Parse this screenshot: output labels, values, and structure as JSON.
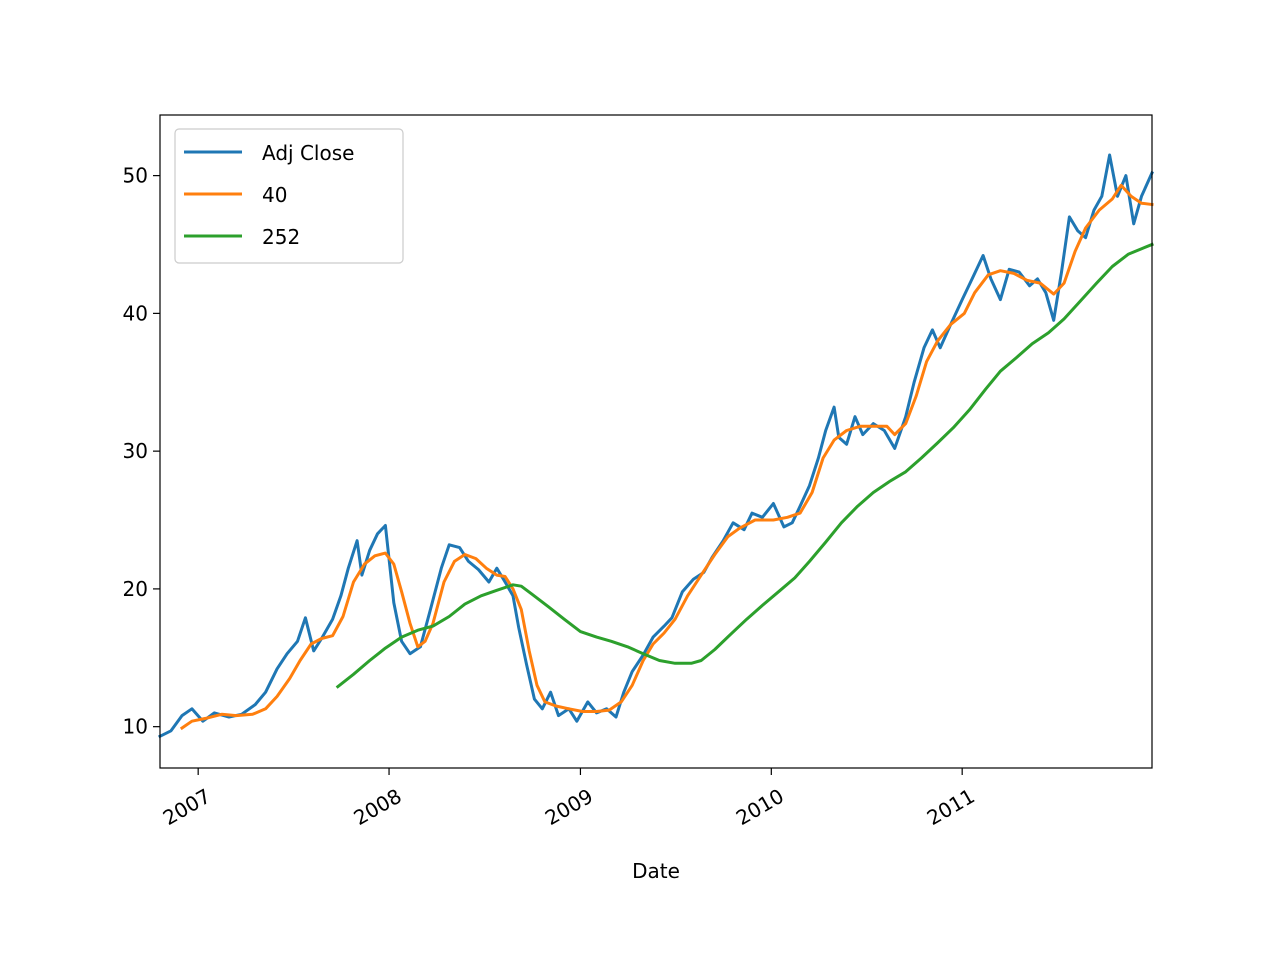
{
  "chart_data": {
    "type": "line",
    "title": "",
    "xlabel": "Date",
    "ylabel": "",
    "xlim": [
      "2006-10-20",
      "2011-12-30"
    ],
    "ylim": [
      7,
      54.4
    ],
    "grid": false,
    "legend_position": "top-left",
    "x_ticks": [
      {
        "date": "2007-01-01",
        "label": "2007"
      },
      {
        "date": "2008-01-01",
        "label": "2008"
      },
      {
        "date": "2009-01-01",
        "label": "2009"
      },
      {
        "date": "2010-01-01",
        "label": "2010"
      },
      {
        "date": "2011-01-01",
        "label": "2011"
      }
    ],
    "y_ticks": [
      10,
      20,
      30,
      40,
      50
    ],
    "series": [
      {
        "name": "Adj Close",
        "color": "#1f77b4",
        "points": [
          [
            "2006-10-20",
            9.3
          ],
          [
            "2006-11-10",
            9.7
          ],
          [
            "2006-12-01",
            10.8
          ],
          [
            "2006-12-20",
            11.3
          ],
          [
            "2007-01-10",
            10.4
          ],
          [
            "2007-02-01",
            11.0
          ],
          [
            "2007-03-01",
            10.7
          ],
          [
            "2007-03-25",
            10.9
          ],
          [
            "2007-04-20",
            11.6
          ],
          [
            "2007-05-10",
            12.5
          ],
          [
            "2007-06-01",
            14.2
          ],
          [
            "2007-06-20",
            15.3
          ],
          [
            "2007-07-10",
            16.2
          ],
          [
            "2007-07-25",
            17.9
          ],
          [
            "2007-08-10",
            15.5
          ],
          [
            "2007-08-25",
            16.4
          ],
          [
            "2007-09-15",
            17.8
          ],
          [
            "2007-10-01",
            19.5
          ],
          [
            "2007-10-15",
            21.5
          ],
          [
            "2007-11-01",
            23.5
          ],
          [
            "2007-11-10",
            21.0
          ],
          [
            "2007-11-25",
            22.8
          ],
          [
            "2007-12-10",
            24.0
          ],
          [
            "2007-12-25",
            24.6
          ],
          [
            "2008-01-10",
            19.0
          ],
          [
            "2008-01-25",
            16.2
          ],
          [
            "2008-02-10",
            15.3
          ],
          [
            "2008-03-01",
            15.8
          ],
          [
            "2008-03-20",
            18.5
          ],
          [
            "2008-04-10",
            21.5
          ],
          [
            "2008-04-25",
            23.2
          ],
          [
            "2008-05-15",
            23.0
          ],
          [
            "2008-06-01",
            22.0
          ],
          [
            "2008-06-20",
            21.4
          ],
          [
            "2008-07-10",
            20.5
          ],
          [
            "2008-07-25",
            21.5
          ],
          [
            "2008-08-10",
            20.5
          ],
          [
            "2008-08-25",
            19.5
          ],
          [
            "2008-09-05",
            17.2
          ],
          [
            "2008-09-20",
            14.5
          ],
          [
            "2008-10-05",
            12.0
          ],
          [
            "2008-10-20",
            11.3
          ],
          [
            "2008-11-05",
            12.5
          ],
          [
            "2008-11-20",
            10.8
          ],
          [
            "2008-12-10",
            11.3
          ],
          [
            "2008-12-25",
            10.4
          ],
          [
            "2009-01-15",
            11.8
          ],
          [
            "2009-02-01",
            11.0
          ],
          [
            "2009-02-20",
            11.3
          ],
          [
            "2009-03-10",
            10.7
          ],
          [
            "2009-03-25",
            12.5
          ],
          [
            "2009-04-10",
            14.0
          ],
          [
            "2009-05-01",
            15.2
          ],
          [
            "2009-05-20",
            16.5
          ],
          [
            "2009-06-10",
            17.3
          ],
          [
            "2009-06-25",
            17.9
          ],
          [
            "2009-07-15",
            19.8
          ],
          [
            "2009-08-05",
            20.7
          ],
          [
            "2009-08-25",
            21.2
          ],
          [
            "2009-09-10",
            22.3
          ],
          [
            "2009-10-01",
            23.5
          ],
          [
            "2009-10-20",
            24.8
          ],
          [
            "2009-11-10",
            24.3
          ],
          [
            "2009-11-25",
            25.5
          ],
          [
            "2009-12-15",
            25.2
          ],
          [
            "2010-01-05",
            26.2
          ],
          [
            "2010-01-25",
            24.5
          ],
          [
            "2010-02-10",
            24.8
          ],
          [
            "2010-02-25",
            26.0
          ],
          [
            "2010-03-15",
            27.5
          ],
          [
            "2010-04-01",
            29.5
          ],
          [
            "2010-04-15",
            31.5
          ],
          [
            "2010-05-01",
            33.2
          ],
          [
            "2010-05-10",
            31.0
          ],
          [
            "2010-05-25",
            30.5
          ],
          [
            "2010-06-10",
            32.5
          ],
          [
            "2010-06-25",
            31.2
          ],
          [
            "2010-07-15",
            32.0
          ],
          [
            "2010-08-05",
            31.5
          ],
          [
            "2010-08-25",
            30.2
          ],
          [
            "2010-09-15",
            32.5
          ],
          [
            "2010-10-01",
            35.0
          ],
          [
            "2010-10-20",
            37.5
          ],
          [
            "2010-11-05",
            38.8
          ],
          [
            "2010-11-20",
            37.5
          ],
          [
            "2010-12-10",
            39.2
          ],
          [
            "2011-01-01",
            41.0
          ],
          [
            "2011-01-20",
            42.5
          ],
          [
            "2011-02-10",
            44.2
          ],
          [
            "2011-02-25",
            42.5
          ],
          [
            "2011-03-15",
            41.0
          ],
          [
            "2011-04-01",
            43.2
          ],
          [
            "2011-04-20",
            43.0
          ],
          [
            "2011-05-10",
            42.0
          ],
          [
            "2011-05-25",
            42.5
          ],
          [
            "2011-06-10",
            41.5
          ],
          [
            "2011-06-25",
            39.5
          ],
          [
            "2011-07-10",
            43.0
          ],
          [
            "2011-07-25",
            47.0
          ],
          [
            "2011-08-10",
            46.0
          ],
          [
            "2011-08-25",
            45.5
          ],
          [
            "2011-09-10",
            47.5
          ],
          [
            "2011-09-25",
            48.5
          ],
          [
            "2011-10-10",
            51.5
          ],
          [
            "2011-10-25",
            48.5
          ],
          [
            "2011-11-10",
            50.0
          ],
          [
            "2011-11-25",
            46.5
          ],
          [
            "2011-12-10",
            48.5
          ],
          [
            "2011-12-30",
            50.2
          ]
        ]
      },
      {
        "name": "40",
        "color": "#ff7f0e",
        "points": [
          [
            "2006-12-01",
            9.9
          ],
          [
            "2006-12-20",
            10.4
          ],
          [
            "2007-01-15",
            10.6
          ],
          [
            "2007-02-15",
            10.9
          ],
          [
            "2007-03-15",
            10.8
          ],
          [
            "2007-04-15",
            10.9
          ],
          [
            "2007-05-10",
            11.3
          ],
          [
            "2007-06-01",
            12.2
          ],
          [
            "2007-06-25",
            13.5
          ],
          [
            "2007-07-15",
            14.8
          ],
          [
            "2007-08-05",
            16.0
          ],
          [
            "2007-08-25",
            16.4
          ],
          [
            "2007-09-15",
            16.6
          ],
          [
            "2007-10-05",
            18.0
          ],
          [
            "2007-10-25",
            20.5
          ],
          [
            "2007-11-15",
            21.8
          ],
          [
            "2007-12-05",
            22.4
          ],
          [
            "2007-12-25",
            22.6
          ],
          [
            "2008-01-10",
            21.8
          ],
          [
            "2008-01-25",
            19.8
          ],
          [
            "2008-02-10",
            17.5
          ],
          [
            "2008-02-25",
            15.8
          ],
          [
            "2008-03-10",
            16.2
          ],
          [
            "2008-03-25",
            17.5
          ],
          [
            "2008-04-15",
            20.5
          ],
          [
            "2008-05-05",
            22.0
          ],
          [
            "2008-05-25",
            22.5
          ],
          [
            "2008-06-15",
            22.2
          ],
          [
            "2008-07-05",
            21.5
          ],
          [
            "2008-07-25",
            21.0
          ],
          [
            "2008-08-10",
            20.9
          ],
          [
            "2008-08-25",
            20.0
          ],
          [
            "2008-09-10",
            18.5
          ],
          [
            "2008-09-25",
            15.5
          ],
          [
            "2008-10-10",
            13.0
          ],
          [
            "2008-10-25",
            11.8
          ],
          [
            "2008-11-15",
            11.5
          ],
          [
            "2008-12-10",
            11.3
          ],
          [
            "2009-01-05",
            11.1
          ],
          [
            "2009-02-01",
            11.1
          ],
          [
            "2009-02-25",
            11.2
          ],
          [
            "2009-03-20",
            11.8
          ],
          [
            "2009-04-10",
            13.0
          ],
          [
            "2009-05-01",
            14.8
          ],
          [
            "2009-05-20",
            16.0
          ],
          [
            "2009-06-10",
            16.8
          ],
          [
            "2009-07-01",
            17.8
          ],
          [
            "2009-07-25",
            19.5
          ],
          [
            "2009-08-20",
            21.0
          ],
          [
            "2009-09-15",
            22.5
          ],
          [
            "2009-10-10",
            23.8
          ],
          [
            "2009-11-01",
            24.4
          ],
          [
            "2009-12-01",
            25.0
          ],
          [
            "2010-01-05",
            25.0
          ],
          [
            "2010-02-01",
            25.2
          ],
          [
            "2010-02-25",
            25.5
          ],
          [
            "2010-03-20",
            27.0
          ],
          [
            "2010-04-10",
            29.5
          ],
          [
            "2010-05-01",
            30.8
          ],
          [
            "2010-05-25",
            31.5
          ],
          [
            "2010-06-20",
            31.8
          ],
          [
            "2010-07-15",
            31.8
          ],
          [
            "2010-08-10",
            31.8
          ],
          [
            "2010-08-25",
            31.2
          ],
          [
            "2010-09-15",
            32.0
          ],
          [
            "2010-10-05",
            34.0
          ],
          [
            "2010-10-25",
            36.5
          ],
          [
            "2010-11-15",
            38.0
          ],
          [
            "2010-12-10",
            39.2
          ],
          [
            "2011-01-05",
            40.0
          ],
          [
            "2011-01-25",
            41.5
          ],
          [
            "2011-02-20",
            42.8
          ],
          [
            "2011-03-15",
            43.1
          ],
          [
            "2011-04-10",
            42.9
          ],
          [
            "2011-05-05",
            42.4
          ],
          [
            "2011-05-30",
            42.2
          ],
          [
            "2011-06-25",
            41.4
          ],
          [
            "2011-07-15",
            42.2
          ],
          [
            "2011-08-05",
            44.5
          ],
          [
            "2011-08-25",
            46.2
          ],
          [
            "2011-09-20",
            47.5
          ],
          [
            "2011-10-15",
            48.3
          ],
          [
            "2011-11-01",
            49.3
          ],
          [
            "2011-11-20",
            48.5
          ],
          [
            "2011-12-10",
            48.0
          ],
          [
            "2011-12-30",
            47.9
          ]
        ]
      },
      {
        "name": "252",
        "color": "#2ca02c",
        "points": [
          [
            "2007-09-25",
            12.9
          ],
          [
            "2007-10-25",
            13.8
          ],
          [
            "2007-11-25",
            14.8
          ],
          [
            "2007-12-25",
            15.7
          ],
          [
            "2008-01-25",
            16.5
          ],
          [
            "2008-02-25",
            17.0
          ],
          [
            "2008-03-25",
            17.3
          ],
          [
            "2008-04-25",
            18.0
          ],
          [
            "2008-05-25",
            18.9
          ],
          [
            "2008-06-25",
            19.5
          ],
          [
            "2008-07-25",
            19.9
          ],
          [
            "2008-08-25",
            20.3
          ],
          [
            "2008-09-10",
            20.2
          ],
          [
            "2008-10-01",
            19.6
          ],
          [
            "2008-11-01",
            18.7
          ],
          [
            "2008-12-01",
            17.8
          ],
          [
            "2009-01-01",
            16.9
          ],
          [
            "2009-02-01",
            16.5
          ],
          [
            "2009-03-01",
            16.2
          ],
          [
            "2009-04-01",
            15.8
          ],
          [
            "2009-05-01",
            15.3
          ],
          [
            "2009-06-01",
            14.8
          ],
          [
            "2009-07-01",
            14.6
          ],
          [
            "2009-08-01",
            14.6
          ],
          [
            "2009-08-20",
            14.8
          ],
          [
            "2009-09-15",
            15.6
          ],
          [
            "2009-10-15",
            16.7
          ],
          [
            "2009-11-15",
            17.8
          ],
          [
            "2009-12-15",
            18.8
          ],
          [
            "2010-01-15",
            19.8
          ],
          [
            "2010-02-15",
            20.8
          ],
          [
            "2010-03-15",
            22.0
          ],
          [
            "2010-04-15",
            23.4
          ],
          [
            "2010-05-15",
            24.8
          ],
          [
            "2010-06-15",
            26.0
          ],
          [
            "2010-07-15",
            27.0
          ],
          [
            "2010-08-15",
            27.8
          ],
          [
            "2010-09-15",
            28.5
          ],
          [
            "2010-10-15",
            29.5
          ],
          [
            "2010-11-15",
            30.6
          ],
          [
            "2010-12-15",
            31.7
          ],
          [
            "2011-01-15",
            33.0
          ],
          [
            "2011-02-15",
            34.5
          ],
          [
            "2011-03-15",
            35.8
          ],
          [
            "2011-04-15",
            36.8
          ],
          [
            "2011-05-15",
            37.8
          ],
          [
            "2011-06-15",
            38.6
          ],
          [
            "2011-07-15",
            39.6
          ],
          [
            "2011-08-15",
            40.9
          ],
          [
            "2011-09-15",
            42.2
          ],
          [
            "2011-10-15",
            43.4
          ],
          [
            "2011-11-15",
            44.3
          ],
          [
            "2011-12-30",
            45.0
          ]
        ]
      }
    ]
  }
}
